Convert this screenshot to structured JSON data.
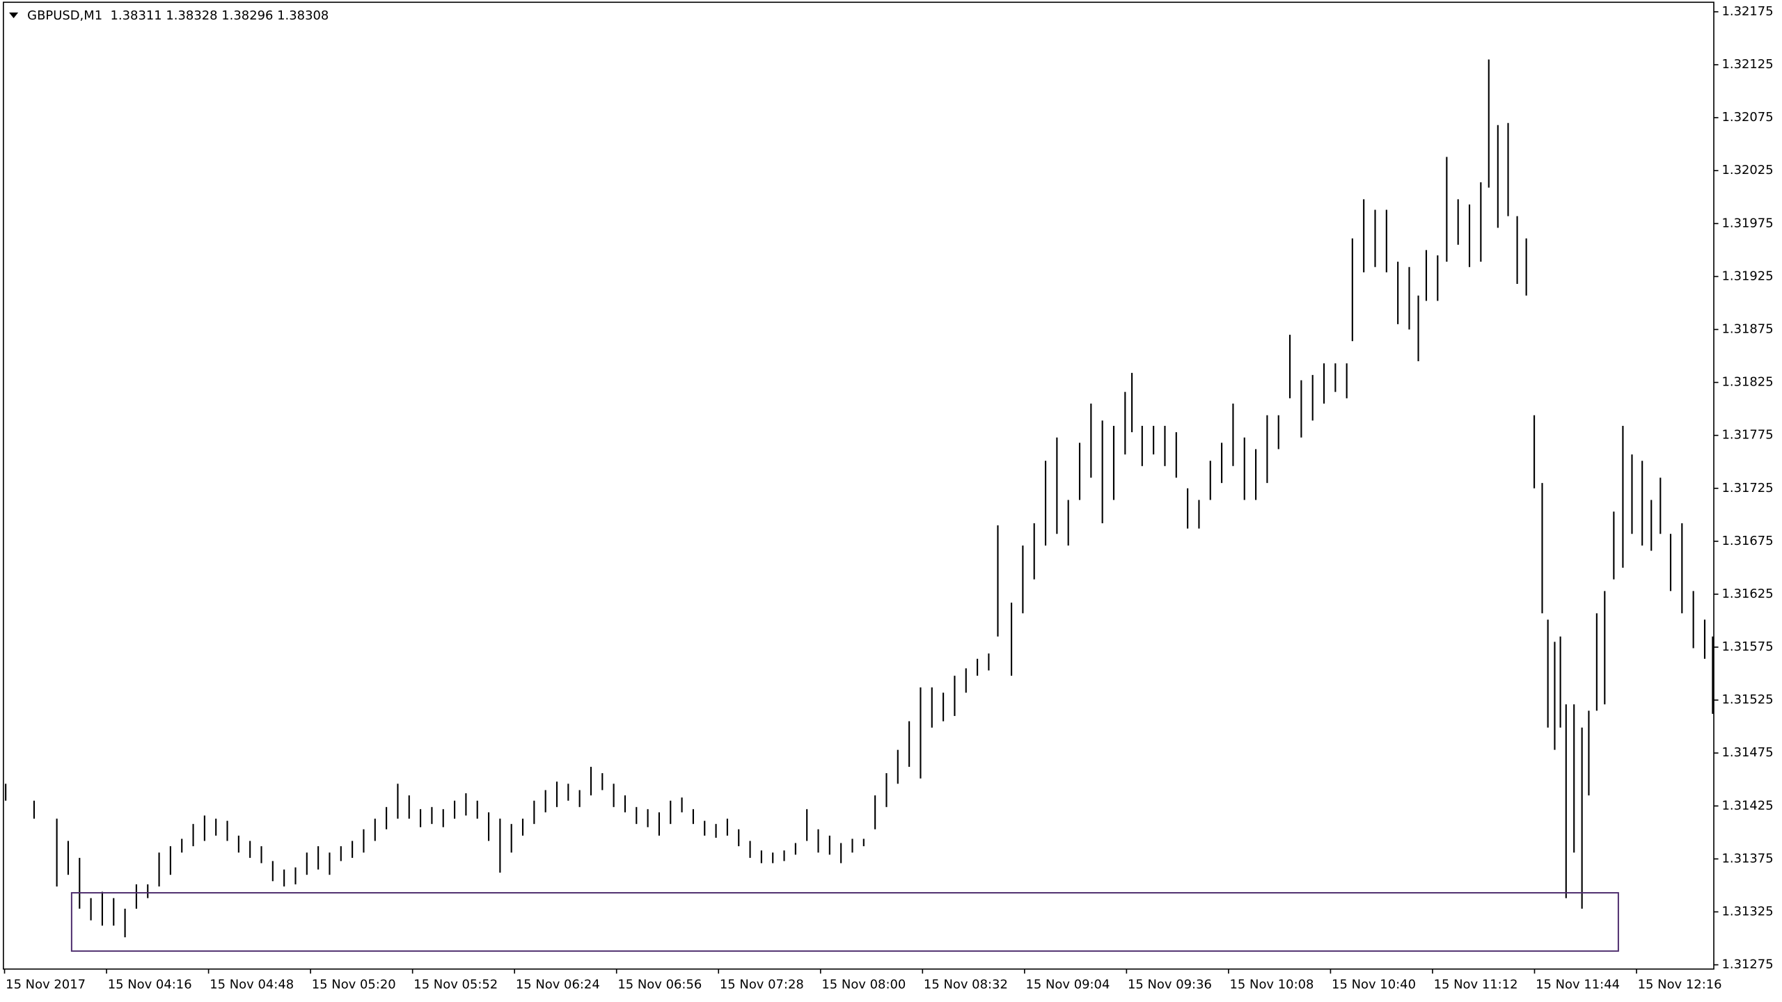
{
  "chart_data": {
    "type": "ohlc",
    "title": "GBPUSD,M1  1.38311 1.38328 1.38296 1.38308",
    "color": "#000000",
    "ylim": [
      1.31271,
      1.32184
    ],
    "yticks": [
      1.32175,
      1.32125,
      1.32075,
      1.32025,
      1.31975,
      1.31925,
      1.31875,
      1.31825,
      1.31775,
      1.31725,
      1.31675,
      1.31625,
      1.31575,
      1.31525,
      1.31475,
      1.31425,
      1.31375,
      1.31325,
      1.31275
    ],
    "x_labels": [
      "15 Nov 2017",
      "15 Nov 04:16",
      "15 Nov 04:48",
      "15 Nov 05:20",
      "15 Nov 05:52",
      "15 Nov 06:24",
      "15 Nov 06:56",
      "15 Nov 07:28",
      "15 Nov 08:00",
      "15 Nov 08:32",
      "15 Nov 09:04",
      "15 Nov 09:36",
      "15 Nov 10:08",
      "15 Nov 10:40",
      "15 Nov 11:12",
      "15 Nov 11:44",
      "15 Nov 12:16"
    ],
    "high": [
      1.31446,
      1.3143,
      1.31413,
      1.31392,
      1.31376,
      1.31338,
      1.31344,
      1.31338,
      1.31328,
      1.31351,
      1.31351,
      1.31381,
      1.31387,
      1.31394,
      1.31408,
      1.31416,
      1.31413,
      1.31411,
      1.31397,
      1.31392,
      1.31387,
      1.31373,
      1.31365,
      1.31367,
      1.31381,
      1.31387,
      1.31381,
      1.31387,
      1.31392,
      1.31403,
      1.31413,
      1.31424,
      1.31446,
      1.31435,
      1.31422,
      1.31424,
      1.31422,
      1.3143,
      1.31437,
      1.3143,
      1.31419,
      1.31413,
      1.31408,
      1.31413,
      1.3143,
      1.3144,
      1.31448,
      1.31446,
      1.3144,
      1.31462,
      1.31456,
      1.31446,
      1.31435,
      1.31424,
      1.31422,
      1.31419,
      1.3143,
      1.31433,
      1.31422,
      1.31411,
      1.31408,
      1.31413,
      1.31403,
      1.31392,
      1.31383,
      1.31381,
      1.31383,
      1.3139,
      1.31422,
      1.31403,
      1.31397,
      1.3139,
      1.31394,
      1.31394,
      1.31435,
      1.31456,
      1.31478,
      1.31505,
      1.31537,
      1.31537,
      1.31532,
      1.31548,
      1.31555,
      1.31564,
      1.31569,
      1.3169,
      1.31617,
      1.31671,
      1.31692,
      1.31751,
      1.31773,
      1.31714,
      1.31768,
      1.31805,
      1.31789,
      1.31784,
      1.31816,
      1.31834,
      1.31784,
      1.31784,
      1.31784,
      1.31778,
      1.31725,
      1.31714,
      1.31751,
      1.31768,
      1.31805,
      1.31773,
      1.31762,
      1.31794,
      1.31794,
      1.3187,
      1.31827,
      1.31832,
      1.31843,
      1.31843,
      1.31843,
      1.31961,
      1.31998,
      1.31988,
      1.31988,
      1.31939,
      1.31934,
      1.31907,
      1.3195,
      1.31945,
      1.32038,
      1.31998,
      1.31993,
      1.32014,
      1.3213,
      1.32068,
      1.3207,
      1.31982,
      1.31961,
      1.31794,
      1.3173,
      1.31601,
      1.3158,
      1.31585,
      1.31521,
      1.31521,
      1.31499,
      1.31515,
      1.31607,
      1.31628,
      1.31703,
      1.31784,
      1.31757,
      1.31751,
      1.31714,
      1.31735,
      1.31682,
      1.31692,
      1.31628,
      1.31601,
      1.31585
    ],
    "low": [
      1.3143,
      1.31413,
      1.31349,
      1.3136,
      1.31328,
      1.31317,
      1.31312,
      1.31312,
      1.31301,
      1.31328,
      1.31338,
      1.31349,
      1.3136,
      1.31381,
      1.31387,
      1.31392,
      1.31397,
      1.31392,
      1.31381,
      1.31376,
      1.31371,
      1.31354,
      1.31349,
      1.31351,
      1.3136,
      1.31365,
      1.3136,
      1.31373,
      1.31376,
      1.31381,
      1.31392,
      1.31403,
      1.31413,
      1.31413,
      1.31405,
      1.31408,
      1.31405,
      1.31413,
      1.31416,
      1.31413,
      1.31392,
      1.31362,
      1.31381,
      1.31397,
      1.31408,
      1.31419,
      1.31424,
      1.3143,
      1.31424,
      1.31435,
      1.3144,
      1.31424,
      1.31419,
      1.31408,
      1.31405,
      1.31397,
      1.31408,
      1.31419,
      1.31408,
      1.31397,
      1.31395,
      1.31397,
      1.31387,
      1.31376,
      1.31371,
      1.31371,
      1.31373,
      1.31379,
      1.31392,
      1.31381,
      1.31379,
      1.31371,
      1.31381,
      1.31387,
      1.31403,
      1.31424,
      1.31446,
      1.31462,
      1.31451,
      1.31499,
      1.31505,
      1.3151,
      1.31532,
      1.31548,
      1.31553,
      1.31585,
      1.31548,
      1.31607,
      1.31639,
      1.31671,
      1.31682,
      1.31671,
      1.31714,
      1.31735,
      1.31692,
      1.31714,
      1.31757,
      1.31778,
      1.31746,
      1.31757,
      1.31746,
      1.31735,
      1.31687,
      1.31687,
      1.31714,
      1.3173,
      1.31746,
      1.31714,
      1.31714,
      1.3173,
      1.31762,
      1.3181,
      1.31773,
      1.31789,
      1.31805,
      1.31816,
      1.3181,
      1.31864,
      1.31929,
      1.31934,
      1.31929,
      1.3188,
      1.31875,
      1.31845,
      1.31902,
      1.31902,
      1.31939,
      1.31955,
      1.31934,
      1.31939,
      1.32009,
      1.31971,
      1.31982,
      1.31918,
      1.31907,
      1.31725,
      1.31607,
      1.31499,
      1.31478,
      1.31499,
      1.31338,
      1.31381,
      1.31328,
      1.31435,
      1.31515,
      1.31521,
      1.31639,
      1.3165,
      1.31682,
      1.31671,
      1.31666,
      1.31682,
      1.31628,
      1.31607,
      1.31574,
      1.31564,
      1.31512
    ],
    "rectangle": {
      "top": 1.31343,
      "bottom": 1.31288,
      "color": "#4b2a6b"
    }
  }
}
